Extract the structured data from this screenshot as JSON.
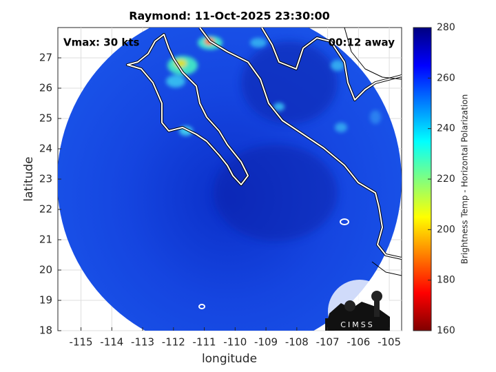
{
  "chart_data": {
    "type": "map",
    "title": "Raymond: 11-Oct-2025 23:30:00",
    "annotations": [
      "Vmax: 30 kts",
      "00:12 away"
    ],
    "xlabel": "longitude",
    "ylabel": "latitude",
    "xlim": [
      -115.75,
      -104.6
    ],
    "ylim": [
      18,
      28
    ],
    "xticks": [
      -115,
      -114,
      -113,
      -112,
      -111,
      -110,
      -109,
      -108,
      -107,
      -106,
      -105
    ],
    "yticks": [
      18,
      19,
      20,
      21,
      22,
      23,
      24,
      25,
      26,
      27
    ],
    "grid": true,
    "colorbar": {
      "label": "Brightness Temp - Horizontal Polarization",
      "lim": [
        160,
        280
      ],
      "ticks": [
        160,
        180,
        200,
        220,
        240,
        260,
        280
      ]
    },
    "logo": "CIMSS"
  }
}
